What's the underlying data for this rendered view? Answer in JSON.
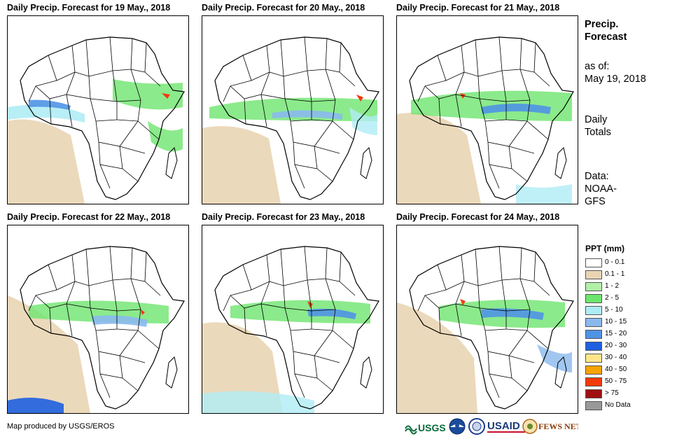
{
  "panels": [
    {
      "title": "Daily Precip. Forecast for 19 May., 2018"
    },
    {
      "title": "Daily Precip. Forecast for 20 May., 2018"
    },
    {
      "title": "Daily Precip. Forecast for 21 May., 2018"
    },
    {
      "title": "Daily Precip. Forecast for 22 May., 2018"
    },
    {
      "title": "Daily Precip. Forecast for 23 May., 2018"
    },
    {
      "title": "Daily Precip. Forecast for 24 May., 2018"
    }
  ],
  "sidebar": {
    "title_line1": "Precip.",
    "title_line2": "Forecast",
    "asof_label": "as of:",
    "asof_date": "May 19, 2018",
    "totals_line1": "Daily",
    "totals_line2": "Totals",
    "data_line1": "Data:",
    "data_line2": "NOAA-",
    "data_line3": "GFS"
  },
  "legend": {
    "title": "PPT (mm)",
    "items": [
      {
        "label": "0 - 0.1",
        "color": "#ffffff"
      },
      {
        "label": "0.1 - 1",
        "color": "#e9d5b4"
      },
      {
        "label": "1 - 2",
        "color": "#b2f0a8"
      },
      {
        "label": "2 - 5",
        "color": "#6ee56e"
      },
      {
        "label": "5 - 10",
        "color": "#b0ecf5"
      },
      {
        "label": "10 - 15",
        "color": "#8ab9ee"
      },
      {
        "label": "15 - 20",
        "color": "#4f93e5"
      },
      {
        "label": "20 - 30",
        "color": "#1f5fe0"
      },
      {
        "label": "30 - 40",
        "color": "#fde68a"
      },
      {
        "label": "40 - 50",
        "color": "#f5a300"
      },
      {
        "label": "50 - 75",
        "color": "#f23a0c"
      },
      {
        "label": "> 75",
        "color": "#a01010"
      },
      {
        "label": "No Data",
        "color": "#999999"
      }
    ]
  },
  "credit": "Map produced by USGS/EROS",
  "logos": {
    "usgs": "USGS",
    "usaid": "USAID",
    "fewsnet": "FEWS NET"
  }
}
